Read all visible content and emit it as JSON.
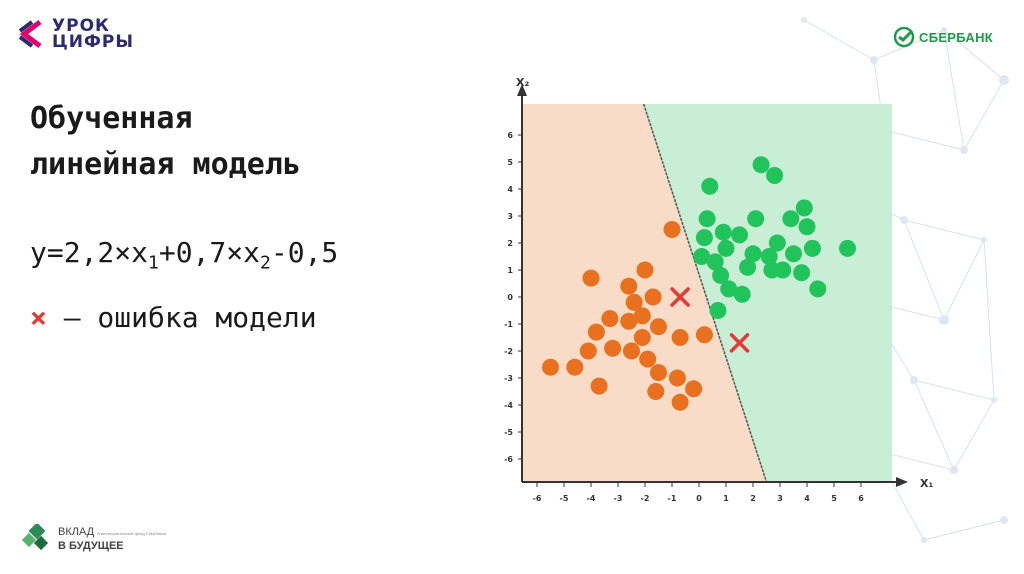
{
  "branding": {
    "uroki_line1": "УРОК",
    "uroki_line2": "ЦИФРЫ",
    "sber": "СБЕРБАНК",
    "vklad_line1": "ВКЛАД",
    "vklad_small": "благотворительный фонд Сбербанка",
    "vklad_line2": "В БУДУЩЕЕ"
  },
  "slide": {
    "title_line1": "Обученная",
    "title_line2": "линейная модель",
    "formula": {
      "y": "y=2,2×x",
      "s1": "1",
      "mid": "+0,7×x",
      "s2": "2",
      "tail": "-0,5"
    },
    "error_mark": "×",
    "error_text": " — ошибка модели"
  },
  "colors": {
    "orange_region": "#f8dcc8",
    "green_region": "#c9eed6",
    "orange_point": "#e8701e",
    "green_point": "#21c45a",
    "error_cross": "#e53935",
    "boundary": "#555555"
  },
  "chart_data": {
    "type": "scatter",
    "x_axis_label": "X₁",
    "y_axis_label": "X₂",
    "xlim": [
      -7,
      7
    ],
    "ylim": [
      -7,
      7
    ],
    "x_ticks": [
      -6,
      -5,
      -4,
      -3,
      -2,
      -1,
      0,
      1,
      2,
      3,
      4,
      5,
      6
    ],
    "y_ticks": [
      6,
      5,
      4,
      3,
      2,
      1,
      0,
      -1,
      -2,
      -3,
      -4,
      -5,
      -6
    ],
    "boundary_line": [
      [
        -2.05,
        7.2
      ],
      [
        2.5,
        -6.9
      ]
    ],
    "series": [
      {
        "class": "orange",
        "points": [
          [
            -1.0,
            2.5
          ],
          [
            -4.0,
            0.7
          ],
          [
            -2.0,
            1.0
          ],
          [
            -2.6,
            0.4
          ],
          [
            -2.4,
            -0.2
          ],
          [
            -1.7,
            0.0
          ],
          [
            -2.1,
            -0.7
          ],
          [
            -2.6,
            -0.9
          ],
          [
            -3.3,
            -0.8
          ],
          [
            -3.8,
            -1.3
          ],
          [
            -1.5,
            -1.1
          ],
          [
            -0.7,
            -1.5
          ],
          [
            0.2,
            -1.4
          ],
          [
            -2.1,
            -1.5
          ],
          [
            -2.5,
            -2.0
          ],
          [
            -3.2,
            -1.9
          ],
          [
            -4.1,
            -2.0
          ],
          [
            -1.9,
            -2.3
          ],
          [
            -1.5,
            -2.8
          ],
          [
            -4.6,
            -2.6
          ],
          [
            -5.5,
            -2.6
          ],
          [
            -0.8,
            -3.0
          ],
          [
            -0.2,
            -3.4
          ],
          [
            -3.7,
            -3.3
          ],
          [
            -1.6,
            -3.5
          ],
          [
            -0.7,
            -3.9
          ]
        ]
      },
      {
        "class": "green",
        "points": [
          [
            2.3,
            4.9
          ],
          [
            2.8,
            4.5
          ],
          [
            0.4,
            4.1
          ],
          [
            0.3,
            2.9
          ],
          [
            2.1,
            2.9
          ],
          [
            3.4,
            2.9
          ],
          [
            3.9,
            3.3
          ],
          [
            4.0,
            2.6
          ],
          [
            0.9,
            2.4
          ],
          [
            1.5,
            2.3
          ],
          [
            0.2,
            2.2
          ],
          [
            1.0,
            1.8
          ],
          [
            2.9,
            2.0
          ],
          [
            4.2,
            1.8
          ],
          [
            5.5,
            1.8
          ],
          [
            2.0,
            1.6
          ],
          [
            2.6,
            1.5
          ],
          [
            3.5,
            1.6
          ],
          [
            0.6,
            1.3
          ],
          [
            0.1,
            1.5
          ],
          [
            1.8,
            1.1
          ],
          [
            2.7,
            1.0
          ],
          [
            3.1,
            1.0
          ],
          [
            3.8,
            0.9
          ],
          [
            0.8,
            0.8
          ],
          [
            1.1,
            0.3
          ],
          [
            4.4,
            0.3
          ],
          [
            1.6,
            0.1
          ],
          [
            0.7,
            -0.5
          ]
        ]
      }
    ],
    "errors": [
      [
        -0.7,
        0.0
      ],
      [
        1.5,
        -1.7
      ]
    ]
  }
}
